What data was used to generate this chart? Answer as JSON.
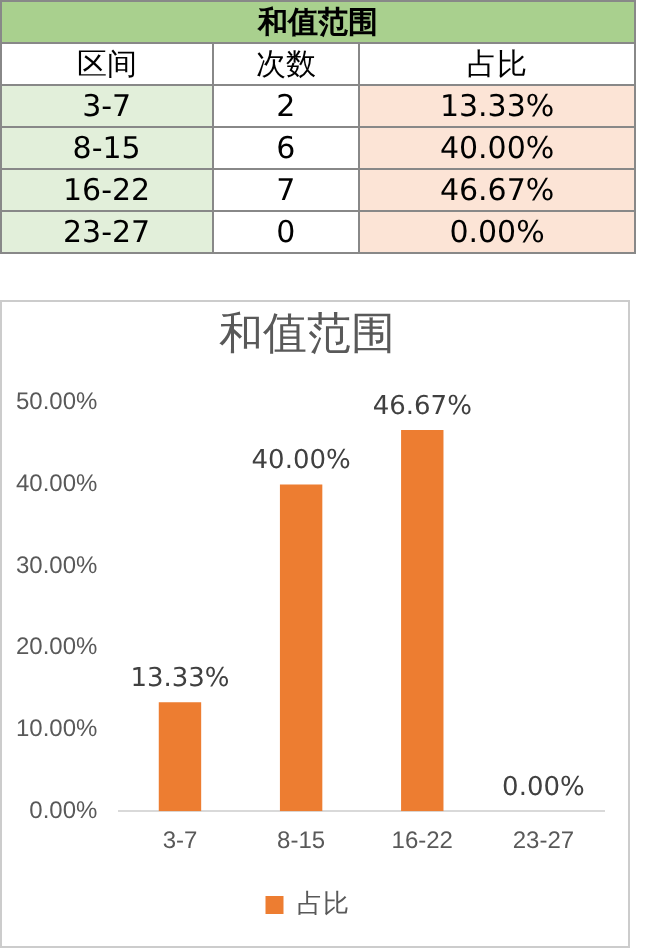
{
  "chart_data": [
    {
      "type": "other",
      "title": "和值范围",
      "categories": [
        "区间",
        "次数",
        "占比"
      ],
      "annotations": [
        "3-7",
        "2",
        "13.33%",
        "8-15",
        "6",
        "40.00%",
        "16-22",
        "7",
        "46.67%",
        "23-27",
        "0",
        "0.00%"
      ]
    },
    {
      "type": "bar",
      "title": "和值范围",
      "categories": [
        "3-7",
        "8-15",
        "16-22",
        "23-27"
      ],
      "series": [
        {
          "name": "占比",
          "color": "#ed7d31",
          "values": [
            13.33,
            40,
            46.67,
            0
          ],
          "value_labels": [
            "13.33%",
            "40.00%",
            "46.67%",
            "0.00%"
          ]
        }
      ],
      "ylim": [
        0,
        50
      ],
      "yticks": [
        {
          "value": 0,
          "label": "0.00%"
        },
        {
          "value": 10,
          "label": "10.00%"
        },
        {
          "value": 20,
          "label": "20.00%"
        },
        {
          "value": 30,
          "label": "30.00%"
        },
        {
          "value": 40,
          "label": "40.00%"
        },
        {
          "value": 50,
          "label": "50.00%"
        }
      ],
      "grid": false,
      "legend": "bottom"
    }
  ]
}
